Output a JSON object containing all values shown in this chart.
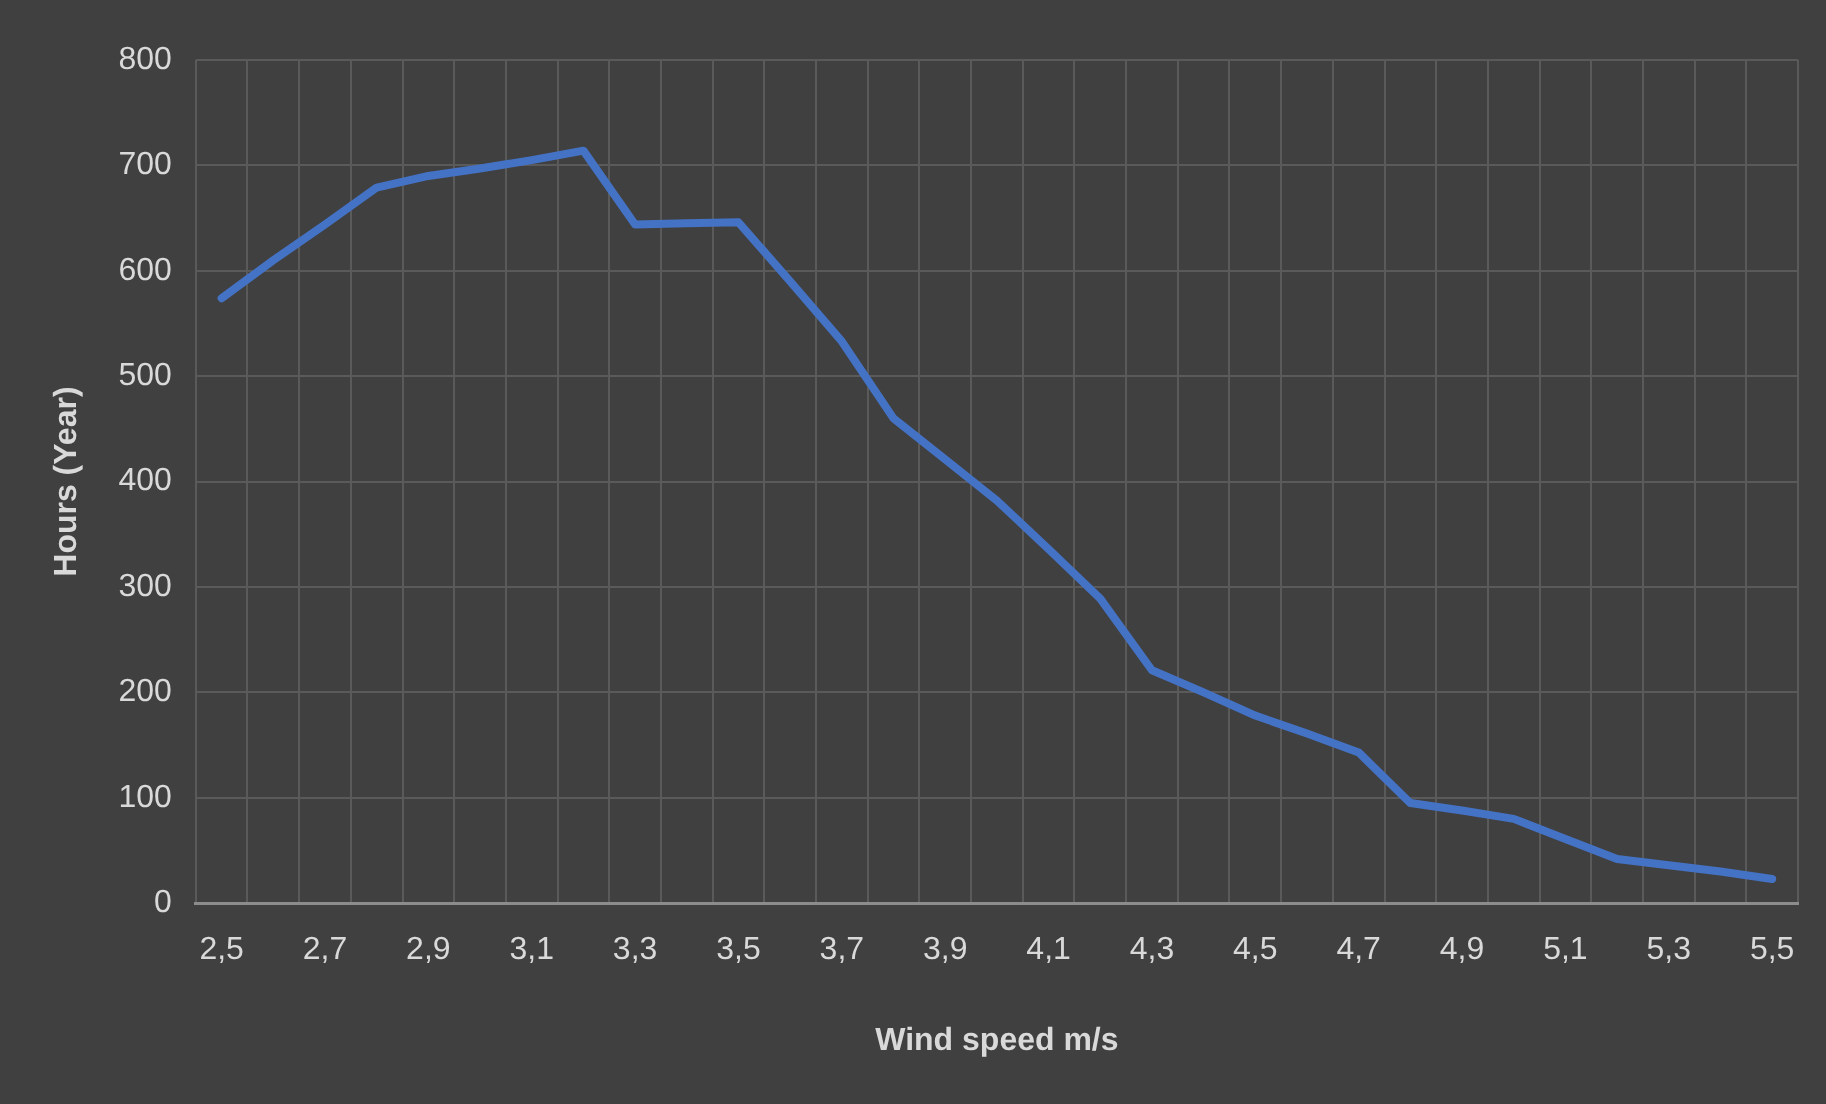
{
  "chart_data": {
    "type": "line",
    "xlabel": "Wind speed m/s",
    "ylabel": "Hours (Year)",
    "categories": [
      "2,5",
      null,
      "2,7",
      null,
      "2,9",
      null,
      "3,1",
      null,
      "3,3",
      null,
      "3,5",
      null,
      "3,7",
      null,
      "3,9",
      null,
      "4,1",
      null,
      "4,3",
      null,
      "4,5",
      null,
      "4,7",
      null,
      "4,9",
      null,
      "5,1",
      null,
      "5,3",
      null,
      "5,5"
    ],
    "series": [
      {
        "color": "#4472c4",
        "values": [
          574,
          610,
          644,
          679,
          690,
          697,
          705,
          714,
          644,
          645,
          646,
          590,
          533,
          460,
          421,
          382,
          336,
          289,
          221,
          200,
          178,
          161,
          143,
          95,
          88,
          80,
          61,
          42,
          36,
          30,
          23
        ]
      }
    ],
    "ylim": [
      0,
      800
    ],
    "yticks": [
      0,
      100,
      200,
      300,
      400,
      500,
      600,
      700,
      800
    ],
    "grid": true,
    "legend": false,
    "marker": "none",
    "line_style": "solid"
  }
}
